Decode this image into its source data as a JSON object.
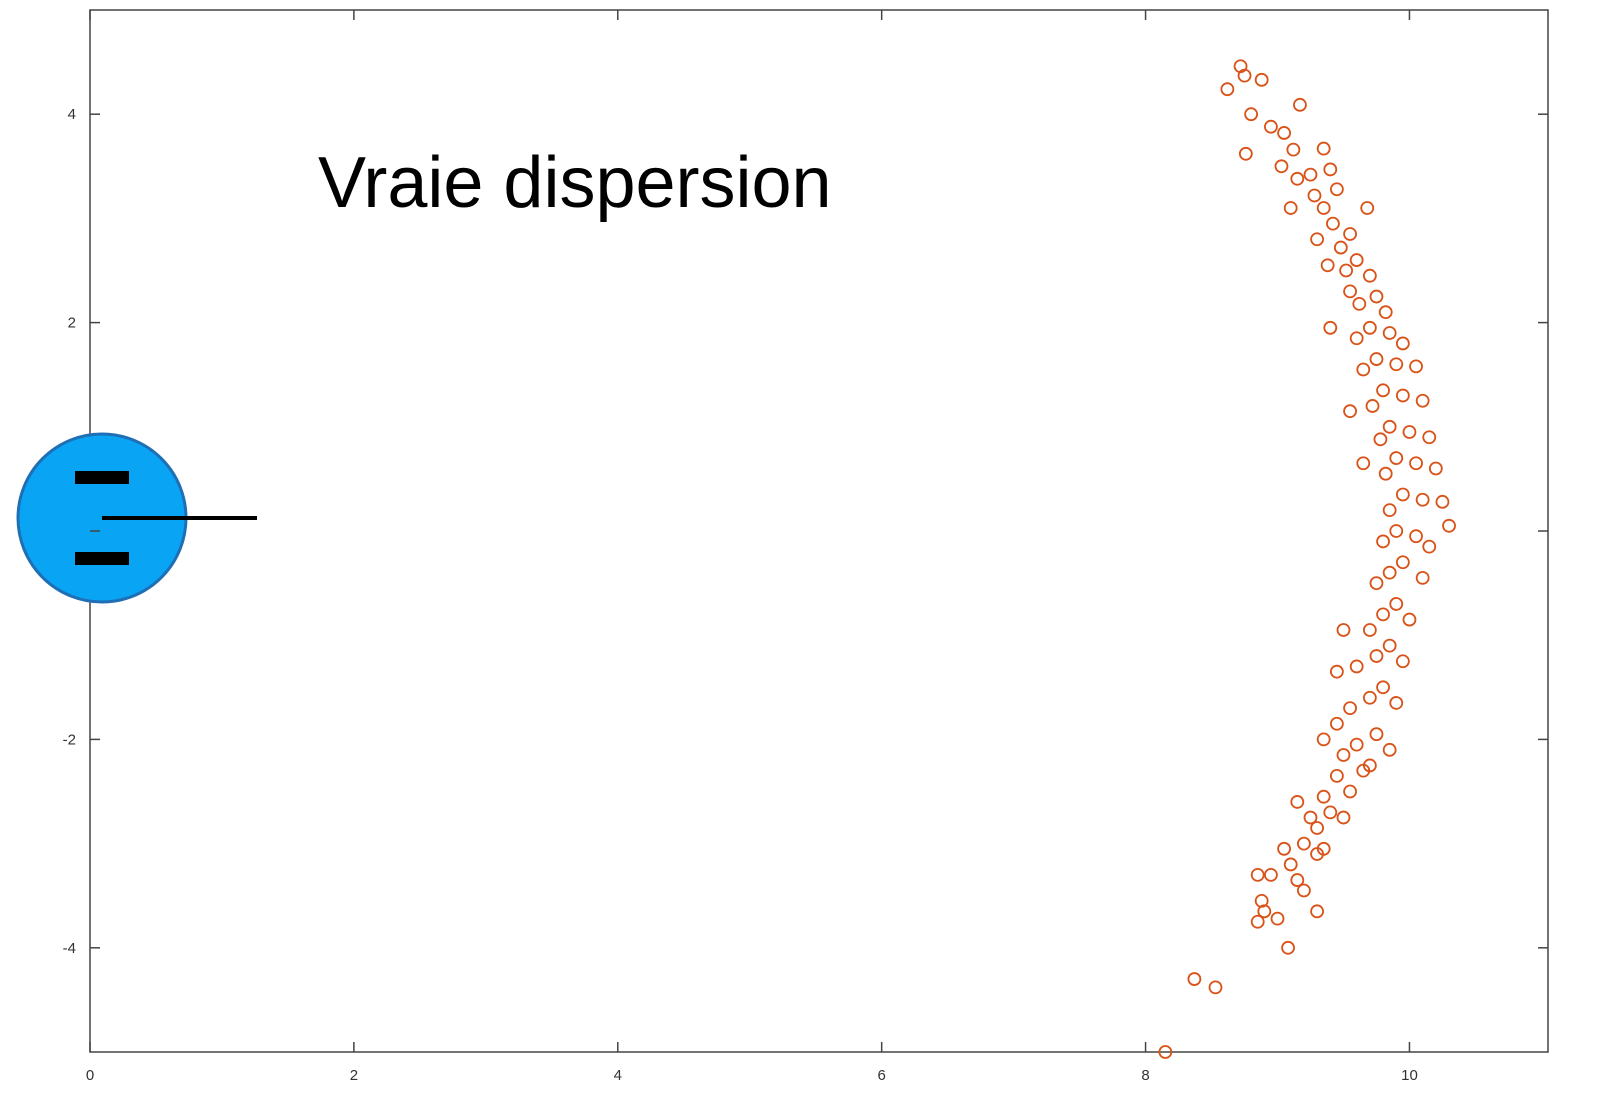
{
  "chart_data": {
    "type": "scatter",
    "annotation": "Vraie dispersion",
    "color": "#d95319",
    "xlim": [
      0,
      11.05
    ],
    "ylim": [
      -5,
      5
    ],
    "xticks": [
      0,
      2,
      4,
      6,
      8,
      10
    ],
    "yticks": [
      {
        "value": -4,
        "label": "-4"
      },
      {
        "value": -2,
        "label": "-2"
      },
      {
        "value": 0,
        "label": null
      },
      2,
      4
    ],
    "x": [
      8.72,
      8.75,
      8.62,
      8.88,
      9.17,
      8.8,
      8.95,
      9.05,
      8.76,
      9.12,
      9.35,
      9.03,
      9.25,
      9.15,
      9.4,
      9.28,
      9.45,
      9.1,
      9.35,
      9.68,
      9.42,
      9.55,
      9.3,
      9.48,
      9.6,
      9.38,
      9.52,
      9.7,
      9.55,
      9.75,
      9.62,
      9.82,
      9.7,
      9.85,
      9.6,
      9.95,
      9.4,
      9.75,
      9.9,
      9.65,
      10.05,
      9.8,
      9.95,
      9.72,
      10.1,
      9.55,
      9.85,
      10.0,
      9.78,
      10.15,
      9.9,
      10.05,
      9.82,
      10.2,
      9.65,
      9.95,
      10.1,
      9.85,
      10.25,
      10.3,
      9.9,
      10.05,
      9.8,
      10.15,
      9.95,
      9.85,
      10.1,
      9.75,
      9.9,
      9.8,
      10.0,
      9.7,
      9.5,
      9.85,
      9.75,
      9.95,
      9.6,
      9.45,
      9.8,
      9.7,
      9.9,
      9.55,
      9.45,
      9.75,
      9.6,
      9.85,
      9.5,
      9.35,
      9.65,
      9.45,
      9.55,
      9.35,
      9.7,
      9.4,
      9.25,
      9.5,
      9.15,
      9.3,
      9.2,
      9.3,
      9.05,
      9.1,
      9.35,
      8.95,
      8.85,
      9.15,
      9.2,
      8.9,
      9.3,
      9.0,
      8.85,
      8.88,
      9.08,
      8.37,
      8.53,
      8.15
    ],
    "values": [
      4.46,
      4.37,
      4.24,
      4.33,
      4.09,
      4.0,
      3.88,
      3.82,
      3.62,
      3.66,
      3.67,
      3.5,
      3.42,
      3.38,
      3.47,
      3.22,
      3.28,
      3.1,
      3.1,
      3.1,
      2.95,
      2.85,
      2.8,
      2.72,
      2.6,
      2.55,
      2.5,
      2.45,
      2.3,
      2.25,
      2.18,
      2.1,
      1.95,
      1.9,
      1.85,
      1.8,
      1.95,
      1.65,
      1.6,
      1.55,
      1.58,
      1.35,
      1.3,
      1.2,
      1.25,
      1.15,
      1.0,
      0.95,
      0.88,
      0.9,
      0.7,
      0.65,
      0.55,
      0.6,
      0.65,
      0.35,
      0.3,
      0.2,
      0.28,
      0.05,
      0.0,
      -0.05,
      -0.1,
      -0.15,
      -0.3,
      -0.4,
      -0.45,
      -0.5,
      -0.7,
      -0.8,
      -0.85,
      -0.95,
      -0.95,
      -1.1,
      -1.2,
      -1.25,
      -1.3,
      -1.35,
      -1.5,
      -1.6,
      -1.65,
      -1.7,
      -1.85,
      -1.95,
      -2.05,
      -2.1,
      -2.15,
      -2.0,
      -2.3,
      -2.35,
      -2.5,
      -2.55,
      -2.25,
      -2.7,
      -2.75,
      -2.75,
      -2.6,
      -2.85,
      -3.0,
      -3.1,
      -3.05,
      -3.2,
      -3.05,
      -3.3,
      -3.3,
      -3.35,
      -3.45,
      -3.65,
      -3.65,
      -3.72,
      -3.75,
      -3.55,
      -4.0,
      -4.3,
      -4.38,
      -5.0
    ]
  }
}
